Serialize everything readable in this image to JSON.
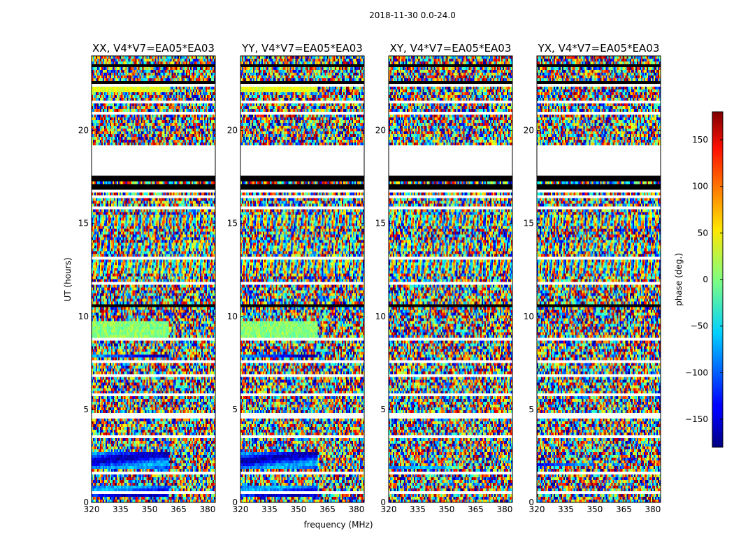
{
  "chart_data": {
    "type": "heatmap",
    "suptitle": "2018-11-30 0.0-24.0",
    "xlabel": "frequency (MHz)",
    "ylabel": "UT (hours)",
    "xlim": [
      320,
      384
    ],
    "ylim": [
      0,
      24
    ],
    "xticks": [
      320,
      335,
      350,
      365,
      380
    ],
    "xtick_labels": [
      "320",
      "335",
      "350",
      "365",
      "380"
    ],
    "yticks": [
      0,
      5,
      10,
      15,
      20
    ],
    "ytick_labels": [
      "0",
      "5",
      "10",
      "15",
      "20"
    ],
    "colormap": "jet",
    "panels": [
      {
        "title": "XX, V4*V7=EA05*EA03",
        "coherent_bands": [
          [
            0.3,
            0.9
          ],
          [
            1.8,
            2.7
          ],
          [
            8.8,
            9.8
          ],
          [
            7.8,
            8.0
          ],
          [
            22.1,
            22.3
          ]
        ],
        "coherent_extent_mhz": 360
      },
      {
        "title": "YY, V4*V7=EA05*EA03",
        "coherent_bands": [
          [
            0.3,
            0.9
          ],
          [
            1.8,
            2.7
          ],
          [
            8.8,
            9.8
          ],
          [
            7.8,
            8.0
          ],
          [
            22.1,
            22.3
          ]
        ],
        "coherent_extent_mhz": 360
      },
      {
        "title": "XY, V4*V7=EA05*EA03",
        "coherent_bands": [
          [
            1.8,
            2.0
          ]
        ],
        "coherent_extent_mhz": 350
      },
      {
        "title": "YX, V4*V7=EA05*EA03",
        "coherent_bands": [
          [
            1.9,
            2.1
          ]
        ],
        "coherent_extent_mhz": 345
      }
    ],
    "gaps_hours": [
      [
        0.45,
        0.55
      ],
      [
        1.55,
        1.65
      ],
      [
        3.45,
        3.6
      ],
      [
        3.7,
        3.8
      ],
      [
        4.55,
        4.6
      ],
      [
        4.7,
        4.8
      ],
      [
        5.55,
        5.6
      ],
      [
        5.75,
        5.85
      ],
      [
        6.8,
        6.95
      ],
      [
        7.3,
        7.4
      ],
      [
        7.55,
        7.65
      ],
      [
        8.05,
        8.15
      ],
      [
        8.7,
        8.8
      ],
      [
        8.95,
        9.0
      ],
      [
        11.7,
        11.85
      ],
      [
        13.1,
        13.2
      ],
      [
        14.2,
        14.3
      ],
      [
        14.65,
        14.75
      ],
      [
        15.75,
        15.85
      ],
      [
        16.35,
        16.45
      ],
      [
        16.7,
        16.8
      ],
      [
        19.15,
        19.25
      ],
      [
        19.9,
        20.0
      ],
      [
        20.85,
        20.95
      ],
      [
        21.5,
        21.6
      ],
      [
        22.0,
        22.1
      ],
      [
        22.35,
        22.45
      ],
      [
        23.05,
        23.15
      ],
      [
        18.9,
        19.15
      ]
    ],
    "blank_hours": [
      [
        17.6,
        18.9
      ]
    ],
    "black_hours": [
      [
        17.25,
        17.6
      ],
      [
        16.85,
        17.15
      ],
      [
        16.15,
        16.25
      ],
      [
        10.45,
        10.65
      ],
      [
        7.75,
        7.85
      ],
      [
        5.05,
        5.15
      ],
      [
        23.4,
        23.5
      ],
      [
        22.55,
        22.65
      ],
      [
        20.05,
        20.15
      ]
    ],
    "colorbar": {
      "label": "phase (deg.)",
      "range": [
        -180,
        180
      ],
      "ticks": [
        -150,
        -100,
        -50,
        0,
        50,
        100,
        150
      ],
      "tick_labels": [
        "−150",
        "−100",
        "−50",
        "0",
        "50",
        "100",
        "150"
      ]
    }
  }
}
